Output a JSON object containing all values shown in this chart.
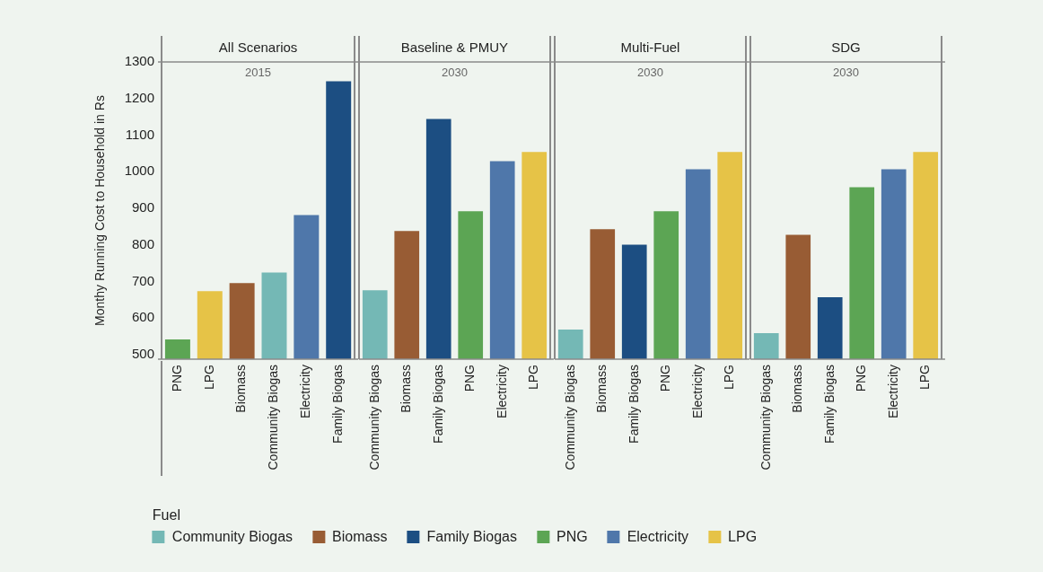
{
  "chart_data": [
    {
      "type": "bar",
      "title": "All Scenarios",
      "subtitle": "2015",
      "ylabel": "Monthy Running Cost to Household in Rs",
      "categories": [
        "PNG",
        "LPG",
        "Biomass",
        "Community Biogas",
        "Electricity",
        "Family Biogas"
      ],
      "ylim": [
        488,
        1300
      ],
      "yticks": [
        500,
        600,
        700,
        800,
        900,
        1000,
        1100,
        1200,
        1300
      ],
      "series": [
        {
          "color": "#74b8b5",
          "values": [
            null,
            null,
            null,
            725,
            null,
            null
          ]
        },
        {
          "color": "#985c34",
          "values": [
            null,
            null,
            696,
            null,
            null,
            null
          ]
        },
        {
          "color": "#1c4e82",
          "values": [
            null,
            null,
            null,
            null,
            null,
            1247
          ]
        },
        {
          "color": "#5ca554",
          "values": [
            542,
            null,
            null,
            null,
            null,
            null
          ]
        },
        {
          "color": "#4f77aa",
          "values": [
            null,
            null,
            null,
            null,
            882,
            null
          ]
        },
        {
          "color": "#e6c347",
          "values": [
            null,
            674,
            null,
            null,
            null,
            null
          ]
        }
      ]
    },
    {
      "type": "bar",
      "title": "Baseline & PMUY",
      "subtitle": "2030",
      "categories": [
        "Community Biogas",
        "Biomass",
        "Family Biogas",
        "PNG",
        "Electricity",
        "LPG"
      ],
      "ylim": [
        488,
        1300
      ],
      "tick_labels": "x",
      "legend": "bottom",
      "legend_title": "Fuel",
      "series": [
        {
          "name": "Community Biogas",
          "color": "#74b8b5",
          "values": [
            676,
            null,
            null,
            null,
            null,
            null
          ]
        },
        {
          "name": "Biomass",
          "color": "#985c34",
          "values": [
            null,
            838,
            null,
            null,
            null,
            null
          ]
        },
        {
          "name": "Family Biogas",
          "color": "#1c4e82",
          "values": [
            null,
            null,
            1144,
            null,
            null,
            null
          ]
        },
        {
          "name": "PNG",
          "color": "#5ca554",
          "values": [
            null,
            null,
            null,
            892,
            null,
            null
          ]
        },
        {
          "name": "Electricity",
          "color": "#4f77aa",
          "values": [
            null,
            null,
            null,
            null,
            1029,
            null
          ]
        },
        {
          "name": "LPG",
          "color": "#e6c347",
          "values": [
            null,
            null,
            null,
            null,
            null,
            1054
          ]
        }
      ]
    },
    {
      "type": "bar",
      "title": "Multi-Fuel",
      "subtitle": "2030",
      "categories": [
        "Community Biogas",
        "Biomass",
        "Family Biogas",
        "PNG",
        "Electricity",
        "LPG"
      ],
      "ylim": [
        488,
        1300
      ],
      "tick_labels": "x",
      "series": [
        {
          "color": "#74b8b5",
          "values": [
            569,
            null,
            null,
            null,
            null,
            null
          ]
        },
        {
          "color": "#985c34",
          "values": [
            null,
            843,
            null,
            null,
            null,
            null
          ]
        },
        {
          "color": "#1c4e82",
          "values": [
            null,
            null,
            801,
            null,
            null,
            null
          ]
        },
        {
          "color": "#5ca554",
          "values": [
            null,
            null,
            null,
            892,
            null,
            null
          ]
        },
        {
          "color": "#4f77aa",
          "values": [
            null,
            null,
            null,
            null,
            1007,
            null
          ]
        },
        {
          "color": "#e6c347",
          "values": [
            null,
            null,
            null,
            null,
            null,
            1054
          ]
        }
      ]
    },
    {
      "type": "bar",
      "title": "SDG",
      "subtitle": "2030",
      "categories": [
        "Community Biogas",
        "Biomass",
        "Family Biogas",
        "PNG",
        "Electricity",
        "LPG"
      ],
      "ylim": [
        488,
        1300
      ],
      "tick_labels": "x",
      "series": [
        {
          "color": "#74b8b5",
          "values": [
            559,
            null,
            null,
            null,
            null,
            null
          ]
        },
        {
          "color": "#985c34",
          "values": [
            null,
            828,
            null,
            null,
            null,
            null
          ]
        },
        {
          "color": "#1c4e82",
          "values": [
            null,
            null,
            657,
            null,
            null,
            null
          ]
        },
        {
          "color": "#5ca554",
          "values": [
            null,
            null,
            null,
            958,
            null,
            null
          ]
        },
        {
          "color": "#4f77aa",
          "values": [
            null,
            null,
            null,
            null,
            1007,
            null
          ]
        },
        {
          "color": "#e6c347",
          "values": [
            null,
            null,
            null,
            null,
            null,
            1054
          ]
        }
      ]
    }
  ]
}
